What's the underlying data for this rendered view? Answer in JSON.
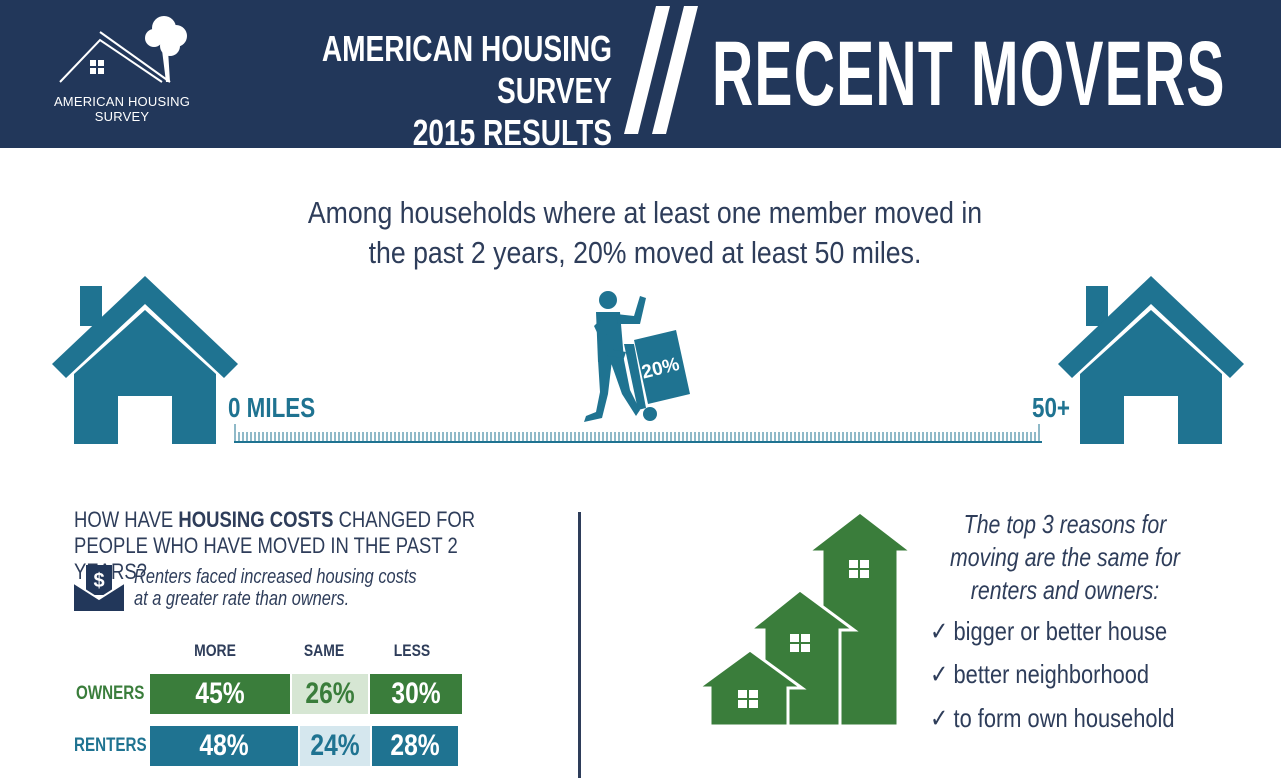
{
  "header": {
    "logo_text_line1": "AMERICAN HOUSING",
    "logo_text_line2": "SURVEY",
    "survey_title_line1": "AMERICAN HOUSING SURVEY",
    "survey_title_line2": "2015 RESULTS",
    "topic_title": "RECENT MOVERS"
  },
  "headline": {
    "line1": "Among households where at least one member moved in",
    "line2": "the past 2 years, 20% moved at least 50 miles."
  },
  "distance": {
    "start_label": "0 MILES",
    "end_label": "50+",
    "mover_percent_label": "20%",
    "mover_share": 0.2
  },
  "housing_costs": {
    "question_part1": "How have ",
    "question_bold": "housing costs",
    "question_part2": " changed for people who have moved in the past 2 years?",
    "note_line1": "Renters faced increased housing costs",
    "note_line2": "at a greater rate than owners.",
    "columns": [
      "MORE",
      "SAME",
      "LESS"
    ],
    "rows": [
      {
        "label": "OWNERS",
        "values": [
          "45%",
          "26%",
          "30%"
        ]
      },
      {
        "label": "RENTERS",
        "values": [
          "48%",
          "24%",
          "28%"
        ]
      }
    ]
  },
  "reasons": {
    "title_line1": "The top 3 reasons for",
    "title_line2": "moving are the same for",
    "title_line3": "renters and owners:",
    "items": [
      "bigger or better house",
      "better neighborhood",
      "to form own household"
    ],
    "check_symbol": "✓"
  },
  "colors": {
    "navy": "#22375a",
    "teal": "#1f7391",
    "green": "#3a7d3b",
    "light_green": "#d6e6d3",
    "light_teal": "#d5e7ee",
    "text": "#2e3d5a"
  }
}
